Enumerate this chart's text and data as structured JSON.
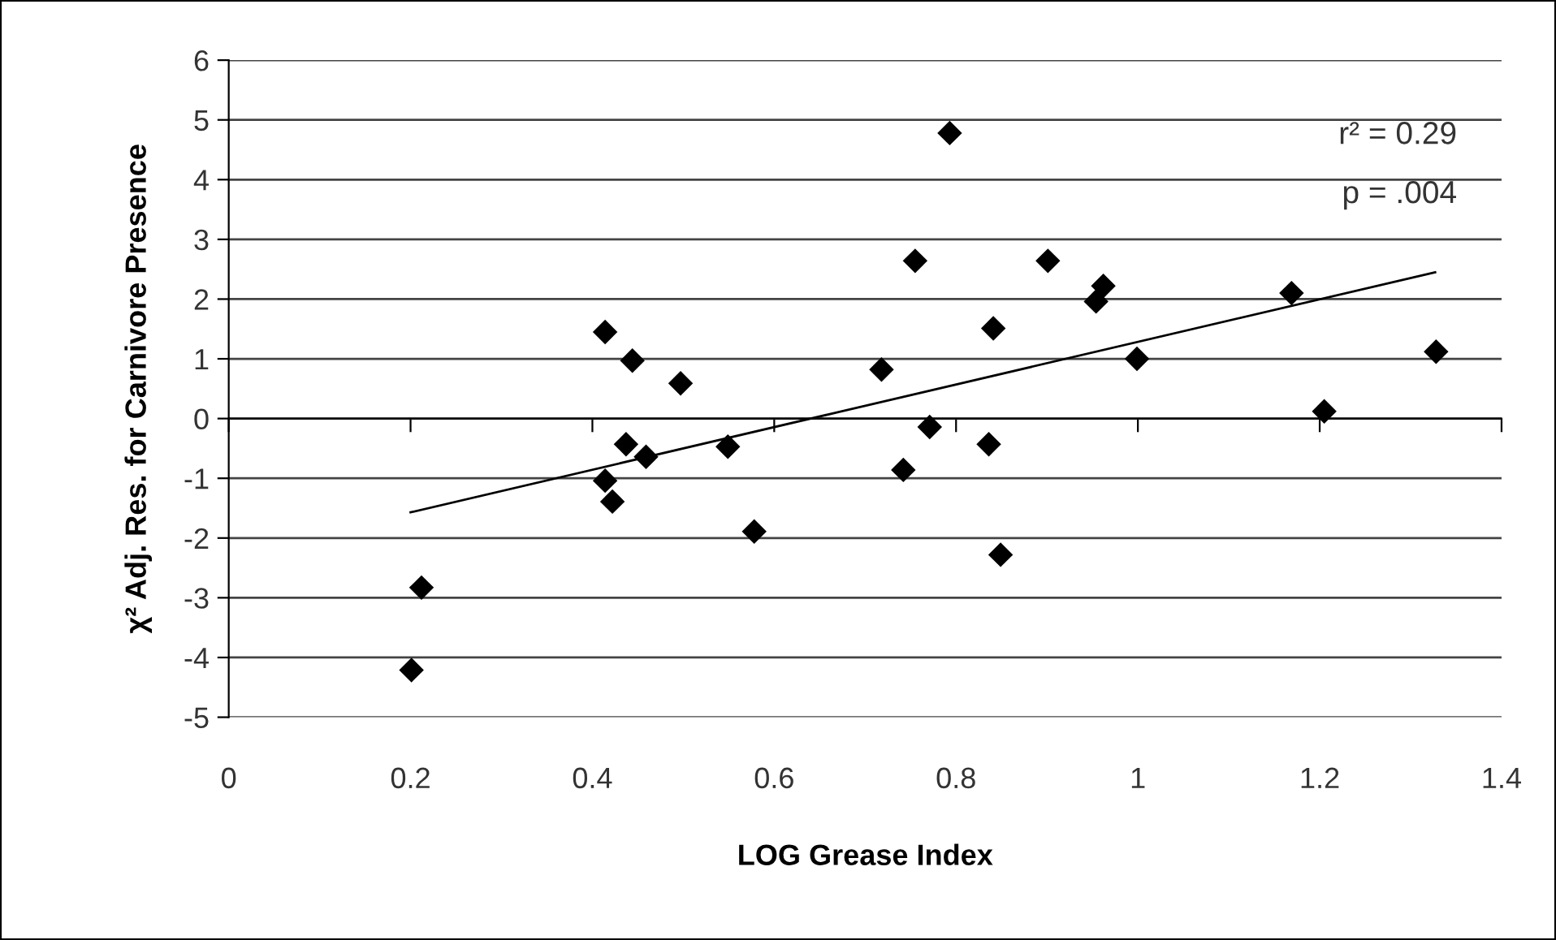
{
  "chart_data": {
    "type": "scatter",
    "xlabel": "LOG Grease Index",
    "ylabel": "χ² Adj. Res. for Carnivore Presence",
    "xlim": [
      0,
      1.4
    ],
    "xticks": [
      0,
      0.2,
      0.4,
      0.6,
      0.8,
      1,
      1.2,
      1.4
    ],
    "ylim": [
      -5,
      6
    ],
    "yticks": [
      -5,
      -4,
      -3,
      -2,
      -1,
      0,
      1,
      2,
      3,
      4,
      5,
      6
    ],
    "grid": "y",
    "legend": false,
    "marker": "diamond",
    "annotations": [
      "r² = 0.29",
      "p = .004"
    ],
    "series": [
      {
        "color": "#000000",
        "x": [
          0.201,
          0.212,
          0.414,
          0.444,
          0.497,
          0.437,
          0.459,
          0.414,
          0.422,
          0.549,
          0.578,
          0.718,
          0.793,
          0.755,
          0.901,
          0.962,
          0.954,
          0.841,
          1.169,
          0.999,
          1.328,
          1.205,
          0.771,
          0.836,
          0.742,
          0.849
        ],
        "values": [
          -4.21,
          -2.83,
          1.45,
          0.97,
          0.59,
          -0.43,
          -0.64,
          -1.04,
          -1.39,
          -0.47,
          -1.89,
          0.82,
          4.78,
          2.64,
          2.64,
          2.22,
          1.96,
          1.51,
          2.1,
          1.0,
          1.12,
          0.12,
          -0.14,
          -0.43,
          -0.86,
          -2.28
        ]
      },
      {
        "type": "line",
        "color": "#000000",
        "x": [
          0.2,
          1.327
        ],
        "values": [
          -1.57,
          2.45
        ],
        "marker": "none",
        "line_style": "solid"
      }
    ]
  }
}
